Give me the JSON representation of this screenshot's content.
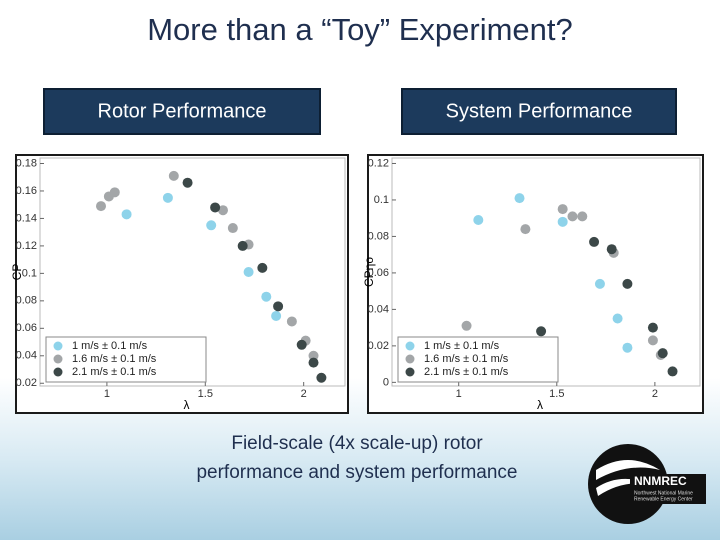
{
  "title": "More than a “Toy” Experiment?",
  "boxes": [
    "Rotor Performance",
    "System Performance"
  ],
  "caption": [
    "Field-scale (4x scale-up) rotor",
    "performance and system performance"
  ],
  "logo": {
    "name": "NNMREC",
    "subtitle": [
      "Northwest National Marine",
      "Renewable Energy Center"
    ]
  },
  "chart_data": [
    {
      "type": "scatter",
      "xlabel": "λ",
      "ylabel": "CP",
      "legend": "lower left",
      "grid": false,
      "xlim": [
        0.66,
        2.21
      ],
      "ylim": [
        0.018,
        0.184
      ],
      "xticks": [
        1,
        1.5,
        2
      ],
      "yticks": [
        0.02,
        0.04,
        0.06,
        0.08,
        0.1,
        0.12,
        0.14,
        0.16,
        0.18
      ],
      "series": [
        {
          "name": "1 m/s ± 0.1 m/s",
          "color": "#8ed3ea",
          "x": [
            1.1,
            1.31,
            1.53,
            1.72,
            1.81,
            1.86
          ],
          "values": [
            0.143,
            0.155,
            0.135,
            0.101,
            0.083,
            0.069
          ]
        },
        {
          "name": "1.6 m/s ± 0.1 m/s",
          "color": "#a3a6a8",
          "x": [
            0.97,
            1.01,
            1.04,
            1.34,
            1.59,
            1.64,
            1.72,
            1.94,
            2.01,
            2.05
          ],
          "values": [
            0.149,
            0.156,
            0.159,
            0.171,
            0.146,
            0.133,
            0.121,
            0.065,
            0.051,
            0.04
          ]
        },
        {
          "name": "2.1 m/s ± 0.1 m/s",
          "color": "#3c4848",
          "x": [
            1.41,
            1.55,
            1.69,
            1.79,
            1.87,
            1.99,
            2.05,
            2.09
          ],
          "values": [
            0.166,
            0.148,
            0.12,
            0.104,
            0.076,
            0.048,
            0.035,
            0.024
          ]
        }
      ]
    },
    {
      "type": "scatter",
      "xlabel": "λ",
      "ylabel": "CPηo",
      "legend": "lower left",
      "grid": false,
      "xlim": [
        0.66,
        2.23
      ],
      "ylim": [
        -0.002,
        0.123
      ],
      "xticks": [
        1,
        1.5,
        2
      ],
      "yticks": [
        0,
        0.02,
        0.04,
        0.06,
        0.08,
        0.1,
        0.12
      ],
      "series": [
        {
          "name": "1 m/s ± 0.1 m/s",
          "color": "#8ed3ea",
          "x": [
            1.1,
            1.31,
            1.53,
            1.72,
            1.81,
            1.86
          ],
          "values": [
            0.089,
            0.101,
            0.088,
            0.054,
            0.035,
            0.019
          ]
        },
        {
          "name": "1.6 m/s ± 0.1 m/s",
          "color": "#a3a6a8",
          "x": [
            1.04,
            1.34,
            1.53,
            1.58,
            1.63,
            1.79,
            1.99,
            2.03
          ],
          "values": [
            0.031,
            0.084,
            0.095,
            0.091,
            0.091,
            0.071,
            0.023,
            0.015
          ]
        },
        {
          "name": "2.1 m/s ± 0.1 m/s",
          "color": "#3c4848",
          "x": [
            1.42,
            1.69,
            1.78,
            1.86,
            1.99,
            2.04,
            2.09
          ],
          "values": [
            0.028,
            0.077,
            0.073,
            0.054,
            0.03,
            0.016,
            0.006
          ]
        }
      ]
    }
  ]
}
